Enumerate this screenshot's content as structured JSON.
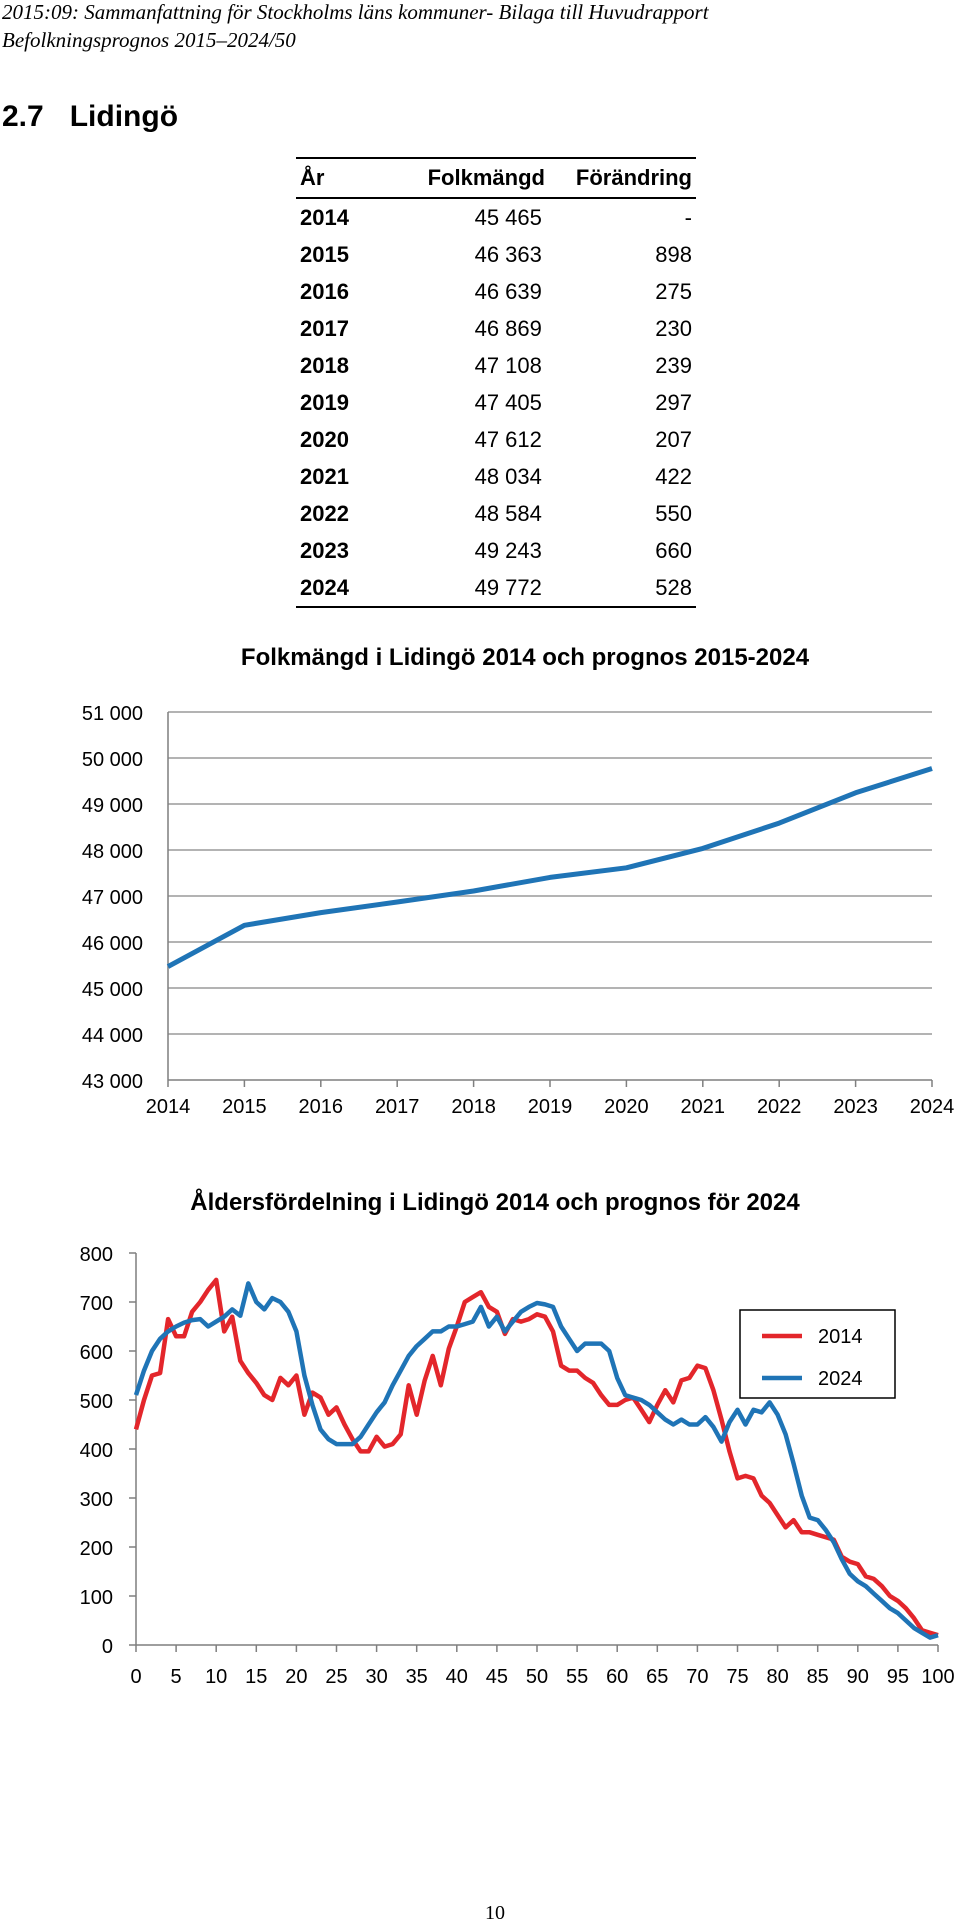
{
  "header": {
    "line1": "2015:09: Sammanfattning för Stockholms läns kommuner- Bilaga till Huvudrapport",
    "line2": "Befolkningsprognos 2015–2024/50"
  },
  "section": {
    "number": "2.7",
    "title": "Lidingö"
  },
  "table": {
    "headers": [
      "År",
      "Folkmängd",
      "Förändring"
    ],
    "rows": [
      [
        "2014",
        "45 465",
        "-"
      ],
      [
        "2015",
        "46 363",
        "898"
      ],
      [
        "2016",
        "46 639",
        "275"
      ],
      [
        "2017",
        "46 869",
        "230"
      ],
      [
        "2018",
        "47 108",
        "239"
      ],
      [
        "2019",
        "47 405",
        "297"
      ],
      [
        "2020",
        "47 612",
        "207"
      ],
      [
        "2021",
        "48 034",
        "422"
      ],
      [
        "2022",
        "48 584",
        "550"
      ],
      [
        "2023",
        "49 243",
        "660"
      ],
      [
        "2024",
        "49 772",
        "528"
      ]
    ]
  },
  "colors": {
    "blue": "#1f74b6",
    "red": "#e3262b",
    "grid": "#9a9a9a"
  },
  "chart_data": [
    {
      "type": "line",
      "title": "Folkmängd i Lidingö 2014 och prognos 2015-2024",
      "x": [
        "2014",
        "2015",
        "2016",
        "2017",
        "2018",
        "2019",
        "2020",
        "2021",
        "2022",
        "2023",
        "2024"
      ],
      "series": [
        {
          "values": [
            45465,
            46363,
            46639,
            46869,
            47108,
            47405,
            47612,
            48034,
            48584,
            49243,
            49772
          ]
        }
      ],
      "ylim": [
        43000,
        51000
      ],
      "yticks": [
        "43 000",
        "44 000",
        "45 000",
        "46 000",
        "47 000",
        "48 000",
        "49 000",
        "50 000",
        "51 000"
      ],
      "grid": true
    },
    {
      "type": "line",
      "title": "Åldersfördelning i Lidingö 2014 och prognos för 2024",
      "xticks": [
        "0",
        "5",
        "10",
        "15",
        "20",
        "25",
        "30",
        "35",
        "40",
        "45",
        "50",
        "55",
        "60",
        "65",
        "70",
        "75",
        "80",
        "85",
        "90",
        "95",
        "100"
      ],
      "yticks": [
        "0",
        "100",
        "200",
        "300",
        "400",
        "500",
        "600",
        "700",
        "800"
      ],
      "xlim": [
        0,
        100
      ],
      "ylim": [
        0,
        800
      ],
      "grid": false,
      "legend_position": "right",
      "series": [
        {
          "name": "2014",
          "values": [
            440,
            500,
            550,
            555,
            665,
            630,
            630,
            680,
            700,
            725,
            745,
            640,
            670,
            580,
            555,
            535,
            510,
            500,
            545,
            530,
            550,
            470,
            515,
            505,
            470,
            485,
            450,
            420,
            395,
            395,
            425,
            405,
            410,
            430,
            530,
            470,
            540,
            590,
            530,
            605,
            650,
            700,
            710,
            720,
            690,
            680,
            635,
            665,
            660,
            665,
            675,
            670,
            640,
            570,
            560,
            560,
            545,
            535,
            510,
            490,
            490,
            500,
            505,
            480,
            455,
            490,
            520,
            495,
            540,
            545,
            570,
            565,
            520,
            460,
            395,
            340,
            345,
            340,
            305,
            290,
            265,
            240,
            255,
            230,
            230,
            225,
            220,
            215,
            180,
            170,
            165,
            140,
            135,
            120,
            100,
            90,
            75,
            55,
            30,
            25,
            20
          ]
        },
        {
          "name": "2024",
          "values": [
            510,
            560,
            600,
            625,
            640,
            650,
            658,
            663,
            665,
            650,
            660,
            670,
            685,
            672,
            738,
            700,
            685,
            708,
            700,
            680,
            640,
            550,
            490,
            440,
            420,
            410,
            410,
            410,
            425,
            450,
            475,
            495,
            530,
            560,
            590,
            610,
            625,
            640,
            640,
            650,
            650,
            655,
            660,
            690,
            650,
            670,
            640,
            660,
            680,
            690,
            698,
            695,
            690,
            650,
            625,
            600,
            615,
            615,
            615,
            600,
            545,
            510,
            505,
            500,
            490,
            475,
            460,
            450,
            460,
            450,
            450,
            465,
            445,
            415,
            455,
            480,
            450,
            480,
            475,
            495,
            470,
            430,
            370,
            305,
            260,
            255,
            235,
            210,
            175,
            145,
            130,
            120,
            105,
            90,
            75,
            65,
            50,
            35,
            25,
            15,
            20
          ]
        }
      ]
    }
  ],
  "page_number": "10"
}
